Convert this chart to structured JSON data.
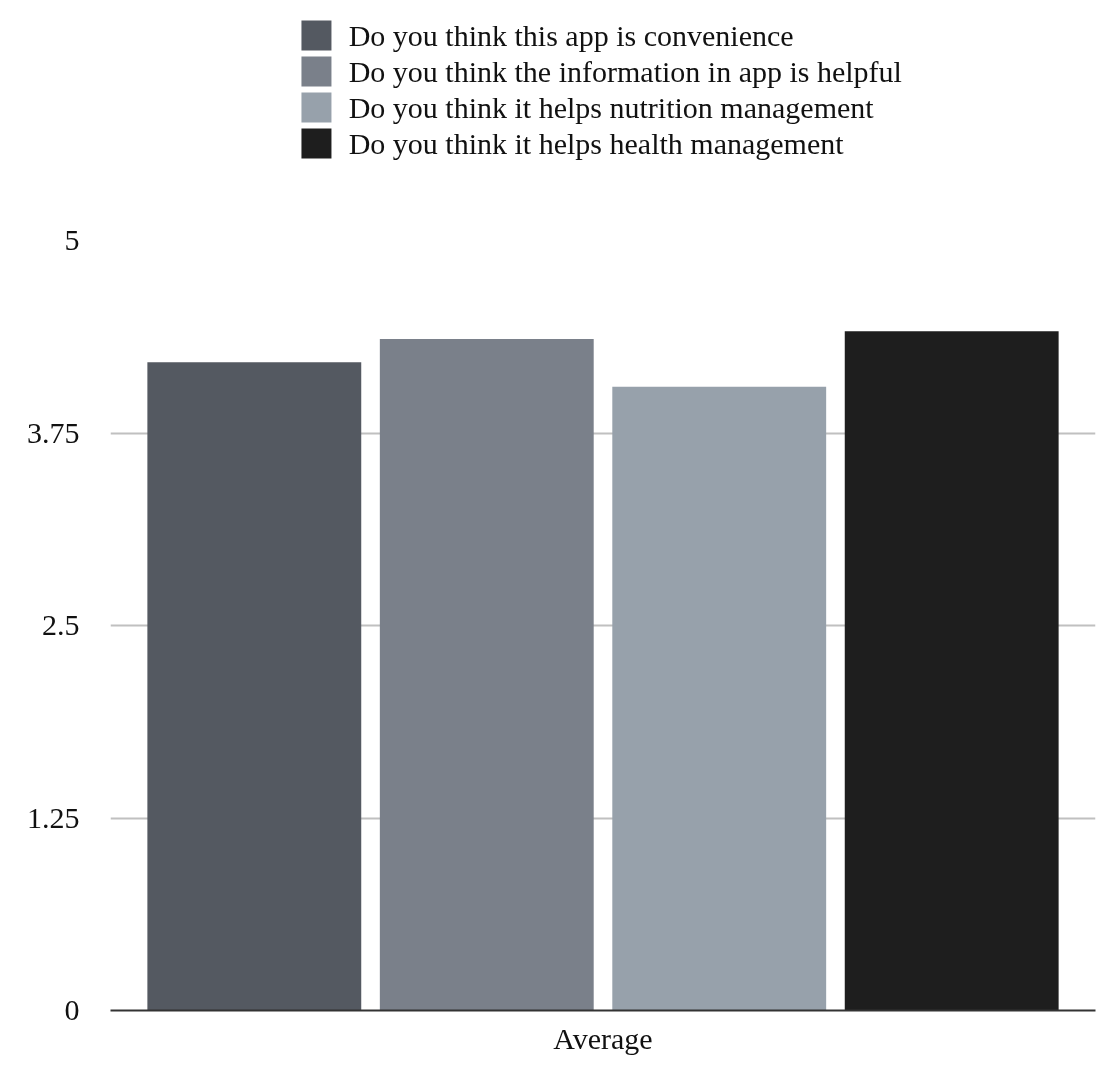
{
  "chart_data": {
    "type": "bar",
    "categories": [
      "Average"
    ],
    "series": [
      {
        "name": "Do you think this app is convenience",
        "color": "#545961",
        "values": [
          4.21
        ]
      },
      {
        "name": "Do you think the information in app is helpful",
        "color": "#7a808a",
        "values": [
          4.36
        ]
      },
      {
        "name": "Do you think it helps nutrition management",
        "color": "#97a1ab",
        "values": [
          4.05
        ]
      },
      {
        "name": "Do you think it helps health management",
        "color": "#1e1e1e",
        "values": [
          4.41
        ]
      }
    ],
    "ylim": [
      0,
      5
    ],
    "yticks": [
      0,
      1.25,
      2.5,
      3.75,
      5
    ],
    "grid": "y",
    "legend": "top"
  }
}
